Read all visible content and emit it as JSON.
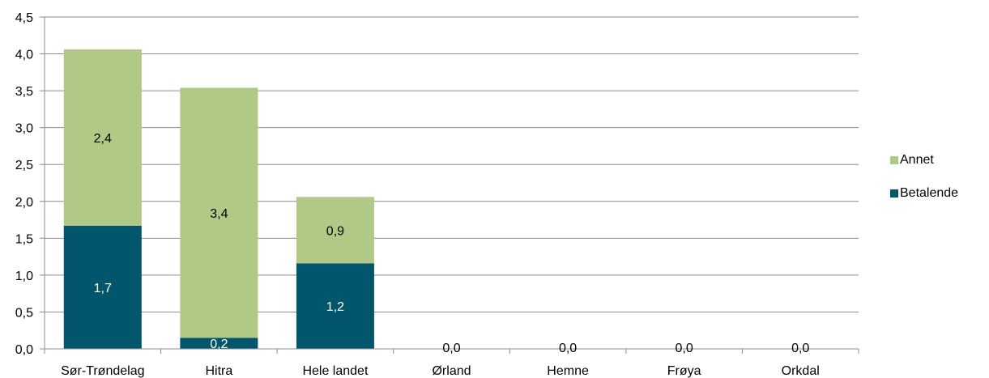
{
  "chart_data": {
    "type": "bar",
    "stacked": true,
    "categories": [
      "Sør-Trøndelag",
      "Hitra",
      "Hele landet",
      "Ørland",
      "Hemne",
      "Frøya",
      "Orkdal"
    ],
    "series": [
      {
        "name": "Betalende",
        "color": "#02566c",
        "values": [
          1.67,
          0.15,
          1.16,
          0,
          0,
          0,
          0
        ],
        "labels": [
          "1,7",
          "0,2",
          "1,2",
          "",
          "",
          "",
          ""
        ]
      },
      {
        "name": "Annet",
        "color": "#b0c986",
        "values": [
          2.39,
          3.39,
          0.9,
          0,
          0,
          0,
          0
        ],
        "labels": [
          "2,4",
          "3,4",
          "0,9",
          "",
          "",
          "",
          ""
        ]
      }
    ],
    "zero_labels": [
      "",
      "",
      "",
      "0,0",
      "0,0",
      "0,0",
      "0,0"
    ],
    "yticks": [
      "0,0",
      "0,5",
      "1,0",
      "1,5",
      "2,0",
      "2,5",
      "3,0",
      "3,5",
      "4,0",
      "4,5"
    ],
    "ylim": [
      0,
      4.5
    ],
    "grid": true,
    "legend_position": "right",
    "title": "",
    "xlabel": "",
    "ylabel": ""
  }
}
